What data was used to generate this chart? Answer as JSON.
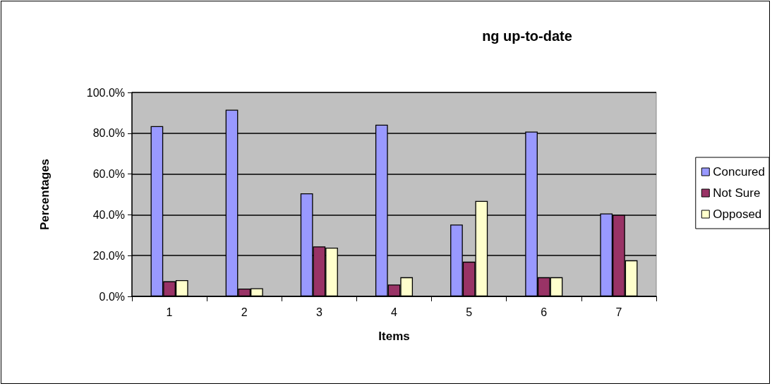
{
  "chart_data": {
    "type": "bar",
    "title": "ng up-to-date",
    "xlabel": "Items",
    "ylabel": "Percentages",
    "categories": [
      "1",
      "2",
      "3",
      "4",
      "5",
      "6",
      "7"
    ],
    "series": [
      {
        "name": "Concured",
        "color": "#9999ff",
        "values": [
          83.5,
          91.5,
          50.5,
          84.2,
          35.2,
          80.8,
          40.7
        ]
      },
      {
        "name": "Not Sure",
        "color": "#993366",
        "values": [
          7.4,
          3.8,
          24.5,
          5.8,
          17.0,
          9.4,
          40.0
        ]
      },
      {
        "name": "Opposed",
        "color": "#ffffcc",
        "values": [
          8.0,
          4.0,
          23.9,
          9.4,
          46.8,
          9.4,
          17.7
        ]
      }
    ],
    "ylim": [
      0,
      100
    ],
    "yticks": [
      {
        "value": 0,
        "label": "0.0%"
      },
      {
        "value": 20,
        "label": "20.0%"
      },
      {
        "value": 40,
        "label": "40.0%"
      },
      {
        "value": 60,
        "label": "60.0%"
      },
      {
        "value": 80,
        "label": "80.0%"
      },
      {
        "value": 100,
        "label": "100.0%"
      }
    ],
    "grid": "y",
    "legend": "right"
  }
}
